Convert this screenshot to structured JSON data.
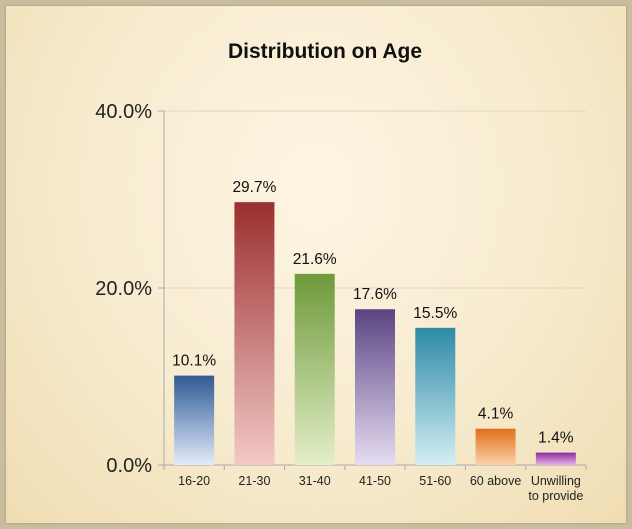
{
  "chart_data": {
    "type": "bar",
    "title": "Distribution on Age",
    "xlabel": "",
    "ylabel": "",
    "categories": [
      "16-20",
      "21-30",
      "31-40",
      "41-50",
      "51-60",
      "60 above",
      "Unwilling to provide"
    ],
    "category_lines": [
      [
        "16-20"
      ],
      [
        "21-30"
      ],
      [
        "31-40"
      ],
      [
        "41-50"
      ],
      [
        "51-60"
      ],
      [
        "60 above"
      ],
      [
        "Unwilling",
        "to provide"
      ]
    ],
    "values": [
      10.1,
      29.7,
      21.6,
      17.6,
      15.5,
      4.1,
      1.4
    ],
    "value_labels": [
      "10.1%",
      "29.7%",
      "21.6%",
      "17.6%",
      "15.5%",
      "4.1%",
      "1.4%"
    ],
    "ylim": [
      0,
      40
    ],
    "yticks": [
      0,
      20,
      40
    ],
    "ytick_labels": [
      "0.0%",
      "20.0%",
      "40.0%"
    ],
    "grid": true,
    "legend": "none",
    "bar_colors": [
      [
        "#2e5a93",
        "#e3ebfb"
      ],
      [
        "#9b2f2f",
        "#f2c9c6"
      ],
      [
        "#6e9a3a",
        "#e4efc9"
      ],
      [
        "#5a4583",
        "#e6dcf2"
      ],
      [
        "#2c8aa6",
        "#d4eef4"
      ],
      [
        "#e0701a",
        "#fbd2aa"
      ],
      [
        "#8a2c98",
        "#e6b3eb"
      ]
    ]
  }
}
